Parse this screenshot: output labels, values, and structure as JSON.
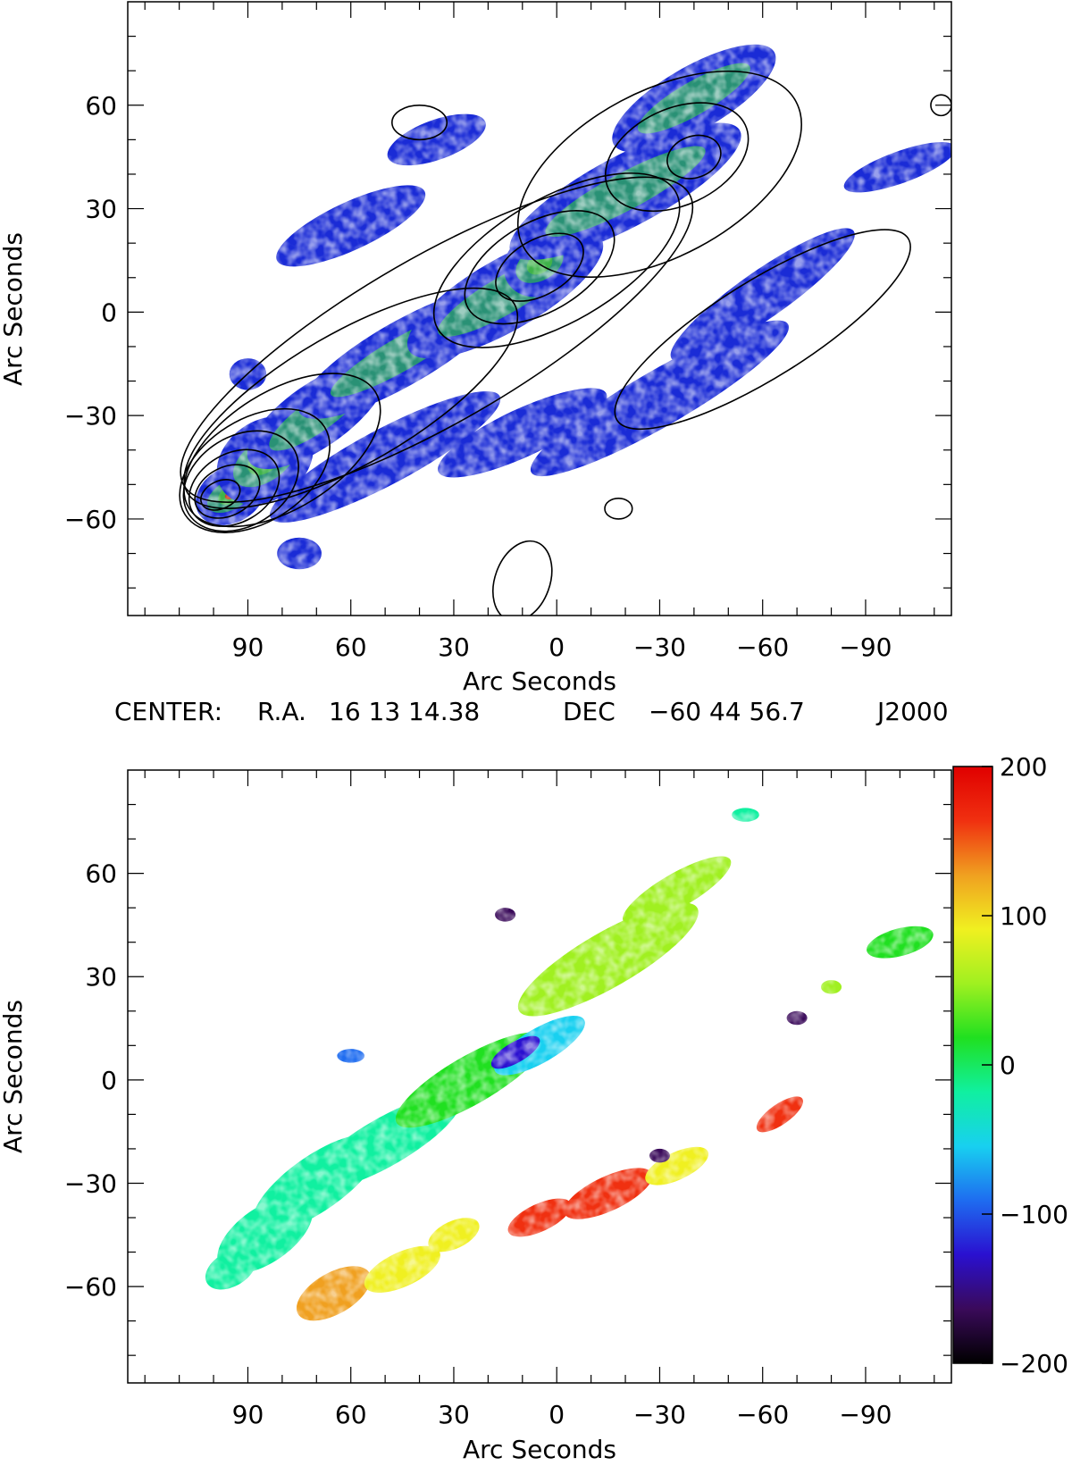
{
  "center": {
    "label": "CENTER:",
    "ra_label": "R.A.",
    "ra_value": "16 13 14.38",
    "dec_label": "DEC",
    "dec_value": "−60 44 56.7",
    "epoch": "J2000"
  },
  "chart_data": [
    {
      "type": "heatmap",
      "title": "",
      "xlabel": "Arc Seconds",
      "ylabel": "Arc Seconds",
      "xlim": [
        125,
        -115
      ],
      "ylim": [
        -88,
        90
      ],
      "x_ticks": [
        90,
        60,
        30,
        0,
        -30,
        -60,
        -90
      ],
      "x_tick_labels": [
        "90",
        "60",
        "30",
        "0",
        "−30",
        "−60",
        "−90"
      ],
      "y_ticks": [
        60,
        30,
        0,
        -30,
        -60
      ],
      "y_tick_labels": [
        "60",
        "30",
        "0",
        "−30",
        "−60"
      ],
      "colormap": [
        "#1a2bd6",
        "#1f5ce6",
        "#2b9c6a",
        "#3fb24a",
        "#2fae3a",
        "#c83a1c"
      ],
      "emission_blobs": [
        {
          "x": 95,
          "y": -53,
          "rx": 10,
          "ry": 7,
          "rot": -30,
          "level": 4
        },
        {
          "x": 85,
          "y": -43,
          "rx": 14,
          "ry": 10,
          "rot": -35,
          "level": 3
        },
        {
          "x": 70,
          "y": -30,
          "rx": 22,
          "ry": 8,
          "rot": -35,
          "level": 2
        },
        {
          "x": 45,
          "y": -12,
          "rx": 32,
          "ry": 8,
          "rot": -30,
          "level": 2
        },
        {
          "x": 15,
          "y": 5,
          "rx": 30,
          "ry": 9,
          "rot": -30,
          "level": 2
        },
        {
          "x": 5,
          "y": 14,
          "rx": 10,
          "ry": 8,
          "rot": -30,
          "level": 3
        },
        {
          "x": -20,
          "y": 35,
          "rx": 35,
          "ry": 9,
          "rot": -28,
          "level": 2
        },
        {
          "x": -40,
          "y": 62,
          "rx": 25,
          "ry": 8,
          "rot": -30,
          "level": 2
        },
        {
          "x": 50,
          "y": -42,
          "rx": 35,
          "ry": 7,
          "rot": -28,
          "level": 1
        },
        {
          "x": 10,
          "y": -35,
          "rx": 25,
          "ry": 6,
          "rot": -25,
          "level": 1
        },
        {
          "x": -30,
          "y": -25,
          "rx": 40,
          "ry": 7,
          "rot": -30,
          "level": 1
        },
        {
          "x": -60,
          "y": 5,
          "rx": 30,
          "ry": 6,
          "rot": -35,
          "level": 1
        },
        {
          "x": 60,
          "y": 25,
          "rx": 22,
          "ry": 6,
          "rot": -25,
          "level": 1
        },
        {
          "x": 35,
          "y": 50,
          "rx": 14,
          "ry": 5,
          "rot": -20,
          "level": 1
        },
        {
          "x": -100,
          "y": 42,
          "rx": 16,
          "ry": 4,
          "rot": -20,
          "level": 1
        },
        {
          "x": 90,
          "y": -18,
          "rx": 5,
          "ry": 4,
          "rot": 0,
          "level": 1
        },
        {
          "x": 75,
          "y": -70,
          "rx": 6,
          "ry": 4,
          "rot": 0,
          "level": 1
        }
      ],
      "contours": [
        {
          "x": 98,
          "y": -53,
          "rx": 6,
          "ry": 4,
          "rot": -25
        },
        {
          "x": 96,
          "y": -52,
          "rx": 10,
          "ry": 7,
          "rot": -28
        },
        {
          "x": 94,
          "y": -51,
          "rx": 14,
          "ry": 10,
          "rot": -30
        },
        {
          "x": 92,
          "y": -49,
          "rx": 18,
          "ry": 13,
          "rot": -32
        },
        {
          "x": 88,
          "y": -46,
          "rx": 24,
          "ry": 15,
          "rot": -32
        },
        {
          "x": 80,
          "y": -40,
          "rx": 32,
          "ry": 17,
          "rot": -32
        },
        {
          "x": 60,
          "y": -25,
          "rx": 55,
          "ry": 19,
          "rot": -30
        },
        {
          "x": 35,
          "y": -8,
          "rx": 85,
          "ry": 24,
          "rot": -30
        },
        {
          "x": 5,
          "y": 13,
          "rx": 14,
          "ry": 8,
          "rot": -30
        },
        {
          "x": 5,
          "y": 13,
          "rx": 24,
          "ry": 13,
          "rot": -30
        },
        {
          "x": 0,
          "y": 15,
          "rx": 40,
          "ry": 18,
          "rot": -30
        },
        {
          "x": -40,
          "y": 45,
          "rx": 8,
          "ry": 6,
          "rot": -20
        },
        {
          "x": -35,
          "y": 45,
          "rx": 22,
          "ry": 14,
          "rot": -25
        },
        {
          "x": -30,
          "y": 40,
          "rx": 45,
          "ry": 24,
          "rot": -28
        },
        {
          "x": -60,
          "y": -5,
          "rx": 50,
          "ry": 14,
          "rot": -32
        },
        {
          "x": 40,
          "y": 55,
          "rx": 8,
          "ry": 5,
          "rot": 0
        },
        {
          "x": -112,
          "y": 60,
          "rx": 3,
          "ry": 3,
          "rot": 0
        },
        {
          "x": -18,
          "y": -57,
          "rx": 4,
          "ry": 3,
          "rot": 0
        },
        {
          "x": 10,
          "y": -78,
          "rx": 8,
          "ry": 12,
          "rot": 20
        }
      ]
    },
    {
      "type": "heatmap",
      "title": "",
      "xlabel": "Arc Seconds",
      "ylabel": "Arc Seconds",
      "xlim": [
        125,
        -115
      ],
      "ylim": [
        -88,
        90
      ],
      "x_ticks": [
        90,
        60,
        30,
        0,
        -30,
        -60,
        -90
      ],
      "x_tick_labels": [
        "90",
        "60",
        "30",
        "0",
        "−30",
        "−60",
        "−90"
      ],
      "y_ticks": [
        60,
        30,
        0,
        -30,
        -60
      ],
      "y_tick_labels": [
        "60",
        "30",
        "0",
        "−30",
        "−60"
      ],
      "colorbar": {
        "range": [
          -200,
          200
        ],
        "ticks": [
          200,
          100,
          0,
          -100,
          -200
        ],
        "tick_labels": [
          "200",
          "100",
          "0",
          "−100",
          "−200"
        ],
        "colors": [
          "#000000",
          "#3a0a5a",
          "#2a10d0",
          "#1e6cf0",
          "#18d0f0",
          "#10f0a0",
          "#20e020",
          "#a0f020",
          "#f0f020",
          "#f0a020",
          "#f03010",
          "#e00000"
        ]
      },
      "velocity_blobs": [
        {
          "x": 95,
          "y": -55,
          "rx": 8,
          "ry": 5,
          "rot": -30,
          "value": -20
        },
        {
          "x": 85,
          "y": -45,
          "rx": 16,
          "ry": 8,
          "rot": -35,
          "value": -30
        },
        {
          "x": 70,
          "y": -30,
          "rx": 22,
          "ry": 8,
          "rot": -35,
          "value": -25
        },
        {
          "x": 50,
          "y": -18,
          "rx": 25,
          "ry": 7,
          "rot": -30,
          "value": -10
        },
        {
          "x": 25,
          "y": 0,
          "rx": 25,
          "ry": 7,
          "rot": -30,
          "value": 0
        },
        {
          "x": 5,
          "y": 10,
          "rx": 15,
          "ry": 5,
          "rot": -30,
          "value": -50
        },
        {
          "x": -15,
          "y": 35,
          "rx": 30,
          "ry": 8,
          "rot": -30,
          "value": 40
        },
        {
          "x": -35,
          "y": 55,
          "rx": 18,
          "ry": 5,
          "rot": -30,
          "value": 70
        },
        {
          "x": 65,
          "y": -62,
          "rx": 12,
          "ry": 6,
          "rot": -30,
          "value": 120
        },
        {
          "x": 45,
          "y": -55,
          "rx": 12,
          "ry": 5,
          "rot": -25,
          "value": 100
        },
        {
          "x": 30,
          "y": -45,
          "rx": 8,
          "ry": 4,
          "rot": -25,
          "value": 90
        },
        {
          "x": 5,
          "y": -40,
          "rx": 10,
          "ry": 4,
          "rot": -25,
          "value": 170
        },
        {
          "x": -15,
          "y": -33,
          "rx": 14,
          "ry": 5,
          "rot": -25,
          "value": 150
        },
        {
          "x": -35,
          "y": -25,
          "rx": 10,
          "ry": 4,
          "rot": -25,
          "value": 80
        },
        {
          "x": -100,
          "y": 40,
          "rx": 10,
          "ry": 4,
          "rot": -15,
          "value": 20
        },
        {
          "x": -65,
          "y": -10,
          "rx": 8,
          "ry": 3,
          "rot": -35,
          "value": 160
        },
        {
          "x": 12,
          "y": 8,
          "rx": 8,
          "ry": 3,
          "rot": -30,
          "value": -140
        },
        {
          "x": -70,
          "y": 18,
          "rx": 3,
          "ry": 2,
          "rot": 0,
          "value": -180
        },
        {
          "x": -30,
          "y": -22,
          "rx": 3,
          "ry": 2,
          "rot": 0,
          "value": -170
        },
        {
          "x": 15,
          "y": 48,
          "rx": 3,
          "ry": 2,
          "rot": 0,
          "value": -160
        },
        {
          "x": -80,
          "y": 27,
          "rx": 3,
          "ry": 2,
          "rot": 0,
          "value": 60
        },
        {
          "x": 60,
          "y": 7,
          "rx": 4,
          "ry": 2,
          "rot": 0,
          "value": -80
        },
        {
          "x": -55,
          "y": 77,
          "rx": 4,
          "ry": 2,
          "rot": 0,
          "value": -30
        }
      ]
    }
  ]
}
